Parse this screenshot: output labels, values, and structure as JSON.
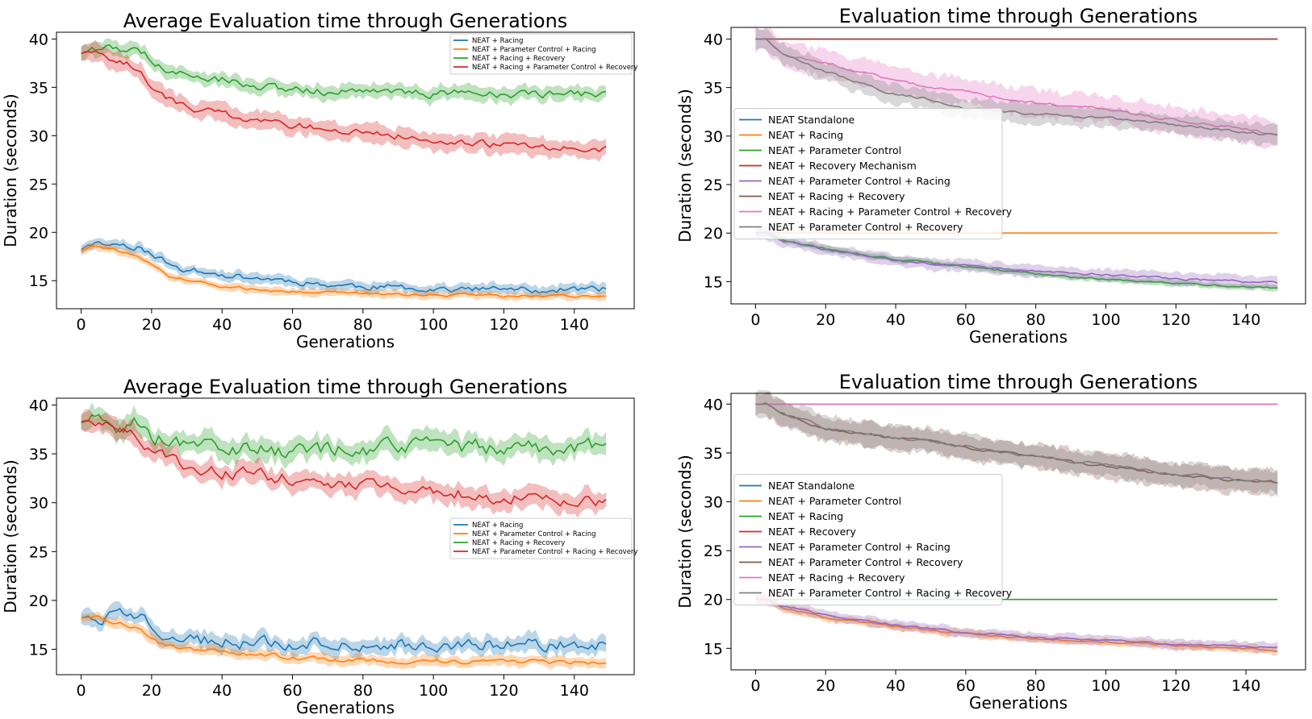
{
  "chart_data": [
    {
      "type": "line",
      "title": "Average Evaluation time through Generations",
      "xlabel": "Generations",
      "ylabel": "Duration (seconds)",
      "xlim": [
        -7,
        157
      ],
      "ylim": [
        12.1,
        40.7
      ],
      "xticks": [
        0,
        20,
        40,
        60,
        80,
        100,
        120,
        140
      ],
      "yticks": [
        15,
        20,
        25,
        30,
        35,
        40
      ],
      "grid": false,
      "legend_position": "upper-right",
      "legend_size": "small",
      "x_end": 149,
      "series": [
        {
          "name": "NEAT + Racing",
          "color": "#1f77b4",
          "x": [
            0,
            3,
            10,
            16,
            20,
            25,
            30,
            40,
            50,
            60,
            70,
            80,
            90,
            100,
            110,
            120,
            130,
            140,
            149
          ],
          "y": [
            18.2,
            18.9,
            18.8,
            18.5,
            17.8,
            16.7,
            16.1,
            15.6,
            15.3,
            15.0,
            14.6,
            14.4,
            14.3,
            14.2,
            14.1,
            14.1,
            14.0,
            14.1,
            14.1
          ],
          "band": 0.5,
          "noise": 0.28
        },
        {
          "name": "NEAT + Parameter Control + Racing",
          "color": "#ff7f0e",
          "x": [
            0,
            3,
            10,
            16,
            20,
            25,
            30,
            40,
            50,
            60,
            70,
            80,
            90,
            100,
            110,
            120,
            130,
            140,
            149
          ],
          "y": [
            18.0,
            18.6,
            18.2,
            17.5,
            16.6,
            15.5,
            15.0,
            14.4,
            14.1,
            13.9,
            13.8,
            13.7,
            13.6,
            13.5,
            13.5,
            13.4,
            13.4,
            13.4,
            13.3
          ],
          "band": 0.4,
          "noise": 0.12
        },
        {
          "name": "NEAT + Racing + Recovery",
          "color": "#2ca02c",
          "x": [
            0,
            3,
            10,
            16,
            20,
            25,
            30,
            40,
            50,
            60,
            70,
            80,
            90,
            100,
            110,
            120,
            130,
            140,
            149
          ],
          "y": [
            38.5,
            38.9,
            39.1,
            38.8,
            38.0,
            36.8,
            36.3,
            35.8,
            35.2,
            34.8,
            34.6,
            34.5,
            34.4,
            34.4,
            34.3,
            34.3,
            34.3,
            34.3,
            34.2
          ],
          "band": 0.7,
          "noise": 0.35
        },
        {
          "name": "NEAT + Racing + Parameter Control + Recovery",
          "color": "#d62728",
          "x": [
            0,
            3,
            10,
            16,
            20,
            25,
            30,
            40,
            50,
            60,
            70,
            80,
            90,
            100,
            110,
            120,
            130,
            140,
            149
          ],
          "y": [
            38.5,
            38.8,
            37.9,
            36.9,
            35.0,
            33.8,
            33.0,
            32.2,
            31.6,
            31.1,
            30.7,
            30.3,
            30.0,
            29.6,
            29.3,
            29.0,
            28.8,
            28.7,
            28.6
          ],
          "band": 0.9,
          "noise": 0.3
        }
      ]
    },
    {
      "type": "line",
      "title": "Evaluation time through Generations",
      "xlabel": "Generations",
      "ylabel": "Duration (seconds)",
      "xlim": [
        -7,
        157
      ],
      "ylim": [
        12.7,
        41.2
      ],
      "xticks": [
        0,
        20,
        40,
        60,
        80,
        100,
        120,
        140
      ],
      "yticks": [
        15,
        20,
        25,
        30,
        35,
        40
      ],
      "grid": false,
      "legend_position": "center-left",
      "legend_size": "normal",
      "x_end": 149,
      "series": [
        {
          "name": "NEAT Standalone",
          "color": "#1f77b4",
          "x": [
            0,
            149
          ],
          "y": [
            40,
            40
          ],
          "band": 0,
          "noise": 0
        },
        {
          "name": "NEAT + Racing",
          "color": "#ff7f0e",
          "x": [
            0,
            149
          ],
          "y": [
            20,
            20
          ],
          "band": 0,
          "noise": 0
        },
        {
          "name": "NEAT + Parameter Control",
          "color": "#2ca02c",
          "x": [
            0,
            3,
            8,
            20,
            40,
            60,
            80,
            100,
            120,
            140,
            149
          ],
          "y": [
            20,
            20,
            19.2,
            18.4,
            17.3,
            16.5,
            15.8,
            15.2,
            14.8,
            14.5,
            14.3
          ],
          "band": 0.3,
          "noise": 0.08
        },
        {
          "name": "NEAT + Recovery Mechanism",
          "color": "#d62728",
          "x": [
            0,
            149
          ],
          "y": [
            40,
            40
          ],
          "band": 0,
          "noise": 0
        },
        {
          "name": "NEAT + Parameter Control + Racing",
          "color": "#9467bd",
          "x": [
            0,
            3,
            8,
            20,
            40,
            60,
            80,
            100,
            120,
            140,
            149
          ],
          "y": [
            20,
            20,
            19.2,
            18.3,
            17.2,
            16.6,
            16.1,
            15.7,
            15.3,
            15.0,
            14.9
          ],
          "band": 0.6,
          "noise": 0.1
        },
        {
          "name": "NEAT + Racing + Recovery",
          "color": "#8c564b",
          "x": [
            0,
            149
          ],
          "y": [
            40,
            40
          ],
          "band": 0,
          "noise": 0
        },
        {
          "name": "NEAT + Racing + Parameter Control + Recovery",
          "color": "#e377c2",
          "x": [
            0,
            3,
            8,
            20,
            40,
            60,
            80,
            100,
            120,
            140,
            149
          ],
          "y": [
            40,
            40,
            38.5,
            37.6,
            35.6,
            34.6,
            33.4,
            32.8,
            31.6,
            30.7,
            30.1
          ],
          "band": 1.3,
          "noise": 0.12
        },
        {
          "name": "NEAT + Parameter Control + Recovery",
          "color": "#7f7f7f",
          "x": [
            0,
            3,
            8,
            20,
            40,
            50,
            60,
            80,
            100,
            120,
            140,
            149
          ],
          "y": [
            40,
            40,
            38.4,
            36.7,
            34.3,
            33.8,
            32.8,
            32.3,
            31.8,
            31.2,
            30.4,
            30.1
          ],
          "band": 1.0,
          "noise": 0.12
        }
      ]
    },
    {
      "type": "line",
      "title": "Average Evaluation time through Generations",
      "xlabel": "Generations",
      "ylabel": "Duration (seconds)",
      "xlim": [
        -7,
        157
      ],
      "ylim": [
        12.4,
        40.7
      ],
      "xticks": [
        0,
        20,
        40,
        60,
        80,
        100,
        120,
        140
      ],
      "yticks": [
        15,
        20,
        25,
        30,
        35,
        40
      ],
      "grid": false,
      "legend_position": "center-right",
      "legend_size": "small",
      "x_end": 149,
      "series": [
        {
          "name": "NEAT + Racing",
          "color": "#1f77b4",
          "x": [
            0,
            3,
            10,
            16,
            20,
            25,
            30,
            40,
            50,
            60,
            70,
            80,
            90,
            100,
            110,
            120,
            130,
            140,
            149
          ],
          "y": [
            18.2,
            18.5,
            18.2,
            18.3,
            17.4,
            16.4,
            16.0,
            15.8,
            15.6,
            15.5,
            15.5,
            15.5,
            15.6,
            15.6,
            15.6,
            15.6,
            15.6,
            15.6,
            15.6
          ],
          "band": 0.8,
          "noise": 0.55
        },
        {
          "name": "NEAT + Parameter Control + Racing",
          "color": "#ff7f0e",
          "x": [
            0,
            3,
            10,
            16,
            20,
            25,
            30,
            40,
            50,
            60,
            70,
            80,
            90,
            100,
            110,
            120,
            130,
            140,
            149
          ],
          "y": [
            18.2,
            18.3,
            17.8,
            17.3,
            16.1,
            15.3,
            15.1,
            14.7,
            14.4,
            14.2,
            14.0,
            13.9,
            13.8,
            13.8,
            13.7,
            13.7,
            13.7,
            13.7,
            13.6
          ],
          "band": 0.5,
          "noise": 0.2
        },
        {
          "name": "NEAT + Racing + Recovery",
          "color": "#2ca02c",
          "x": [
            0,
            3,
            10,
            16,
            20,
            25,
            30,
            40,
            50,
            60,
            70,
            80,
            90,
            100,
            110,
            120,
            130,
            140,
            149
          ],
          "y": [
            38.2,
            38.5,
            38.0,
            38.1,
            37.0,
            36.2,
            35.8,
            35.6,
            35.5,
            35.4,
            35.5,
            35.5,
            35.6,
            35.6,
            35.6,
            35.6,
            35.6,
            35.7,
            35.7
          ],
          "band": 1.0,
          "noise": 0.7
        },
        {
          "name": "NEAT + Parameter Control + Racing + Recovery",
          "color": "#d62728",
          "x": [
            0,
            3,
            10,
            16,
            20,
            25,
            30,
            40,
            50,
            60,
            70,
            80,
            90,
            100,
            110,
            120,
            130,
            140,
            149
          ],
          "y": [
            38.3,
            38.5,
            37.3,
            36.9,
            35.4,
            34.4,
            33.9,
            33.2,
            32.8,
            32.4,
            32.1,
            31.8,
            31.5,
            31.2,
            30.9,
            30.6,
            30.3,
            30.1,
            29.9
          ],
          "band": 1.0,
          "noise": 0.55
        }
      ]
    },
    {
      "type": "line",
      "title": "Evaluation time through Generations",
      "xlabel": "Generations",
      "ylabel": "Duration (seconds)",
      "xlim": [
        -7,
        157
      ],
      "ylim": [
        12.8,
        41.1
      ],
      "xticks": [
        0,
        20,
        40,
        60,
        80,
        100,
        120,
        140
      ],
      "yticks": [
        15,
        20,
        25,
        30,
        35,
        40
      ],
      "grid": false,
      "legend_position": "center-left",
      "legend_size": "normal",
      "x_end": 149,
      "series": [
        {
          "name": "NEAT Standalone",
          "color": "#1f77b4",
          "x": [
            0,
            149
          ],
          "y": [
            40,
            40
          ],
          "band": 0,
          "noise": 0
        },
        {
          "name": "NEAT + Parameter Control",
          "color": "#ff7f0e",
          "x": [
            0,
            3,
            8,
            20,
            40,
            60,
            80,
            100,
            120,
            140,
            149
          ],
          "y": [
            20,
            20,
            19.2,
            18.1,
            17.2,
            16.5,
            16.0,
            15.7,
            15.3,
            15.0,
            14.7
          ],
          "band": 0.4,
          "noise": 0.08
        },
        {
          "name": "NEAT + Racing",
          "color": "#2ca02c",
          "x": [
            0,
            149
          ],
          "y": [
            20,
            20
          ],
          "band": 0,
          "noise": 0
        },
        {
          "name": "NEAT + Recovery",
          "color": "#d62728",
          "x": [
            0,
            149
          ],
          "y": [
            40,
            40
          ],
          "band": 0,
          "noise": 0
        },
        {
          "name": "NEAT + Parameter Control + Racing",
          "color": "#9467bd",
          "x": [
            0,
            3,
            8,
            20,
            40,
            60,
            80,
            100,
            120,
            140,
            149
          ],
          "y": [
            20,
            20,
            19.3,
            18.4,
            17.4,
            16.6,
            16.1,
            15.8,
            15.4,
            15.2,
            15.1
          ],
          "band": 0.5,
          "noise": 0.08
        },
        {
          "name": "NEAT + Parameter Control + Recovery",
          "color": "#8c564b",
          "x": [
            0,
            3,
            8,
            20,
            40,
            60,
            80,
            100,
            120,
            140,
            149
          ],
          "y": [
            40,
            40,
            39.0,
            37.4,
            36.6,
            35.6,
            34.6,
            33.6,
            32.8,
            32.1,
            32.0
          ],
          "band": 1.2,
          "noise": 0.12
        },
        {
          "name": "NEAT + Racing + Recovery",
          "color": "#e377c2",
          "x": [
            0,
            149
          ],
          "y": [
            40,
            40
          ],
          "band": 0,
          "noise": 0
        },
        {
          "name": "NEAT + Parameter Control + Racing + Recovery",
          "color": "#7f7f7f",
          "x": [
            0,
            3,
            8,
            20,
            40,
            60,
            80,
            100,
            120,
            140,
            149
          ],
          "y": [
            40,
            40,
            39.0,
            37.6,
            36.5,
            35.7,
            34.6,
            33.8,
            32.8,
            32.3,
            32.0
          ],
          "band": 1.2,
          "noise": 0.12
        }
      ]
    }
  ]
}
